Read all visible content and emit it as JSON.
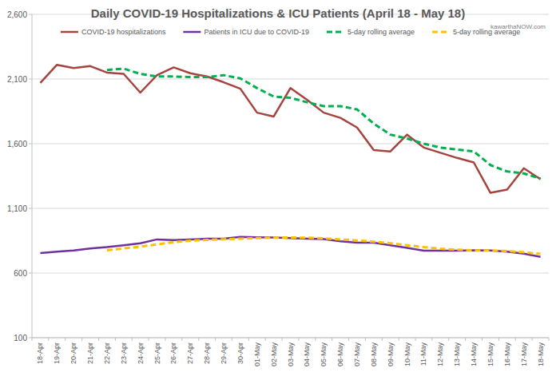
{
  "chart_data": {
    "type": "line",
    "title": "Daily COVID-19 Hospitalizations & ICU Patients (April 18 - May 18)",
    "annotation": "kawarthaNOW.com",
    "categories": [
      "18-Apr",
      "19-Apr",
      "20-Apr",
      "21-Apr",
      "22-Apr",
      "23-Apr",
      "24-Apr",
      "25-Apr",
      "26-Apr",
      "27-Apr",
      "28-Apr",
      "29-Apr",
      "30-Apr",
      "01-May",
      "02-May",
      "03-May",
      "04-May",
      "05-May",
      "06-May",
      "07-May",
      "08-May",
      "09-May",
      "10-May",
      "11-May",
      "12-May",
      "13-May",
      "14-May",
      "15-May",
      "16-May",
      "17-May",
      "18-May"
    ],
    "series": [
      {
        "name": "COVID-19 hospitalizations",
        "color": "#a5443f",
        "line_style": "solid",
        "values": [
          2070,
          2210,
          2185,
          2200,
          2150,
          2140,
          1995,
          2130,
          2190,
          2145,
          2120,
          2075,
          2025,
          1840,
          1810,
          2030,
          1940,
          1840,
          1800,
          1725,
          1550,
          1540,
          1670,
          1570,
          1530,
          1490,
          1455,
          1220,
          1245,
          1410,
          1325
        ]
      },
      {
        "name": "Patients in ICU due to COVID-19",
        "color": "#7030a0",
        "line_style": "solid",
        "values": [
          755,
          765,
          775,
          790,
          800,
          815,
          830,
          860,
          855,
          860,
          865,
          865,
          880,
          877,
          875,
          870,
          865,
          862,
          845,
          835,
          835,
          815,
          795,
          773,
          773,
          773,
          776,
          775,
          765,
          750,
          725
        ]
      },
      {
        "name": "5-day rolling average",
        "color": "#00b050",
        "line_style": "dashed",
        "values": [
          null,
          null,
          null,
          null,
          2170,
          2180,
          2140,
          2120,
          2120,
          2115,
          2115,
          2130,
          2105,
          2030,
          1965,
          1955,
          1920,
          1890,
          1890,
          1865,
          1755,
          1670,
          1640,
          1600,
          1570,
          1555,
          1540,
          1435,
          1385,
          1370,
          1330
        ]
      },
      {
        "name": "5-day rolling average",
        "color": "#ffc000",
        "line_style": "dashed",
        "values": [
          null,
          null,
          null,
          null,
          776,
          791,
          803,
          822,
          838,
          850,
          856,
          861,
          866,
          870,
          873,
          875,
          873,
          868,
          860,
          852,
          842,
          830,
          815,
          800,
          788,
          780,
          775,
          774,
          770,
          760,
          748
        ]
      }
    ],
    "ylim": [
      100,
      2600
    ],
    "yticks": [
      100,
      600,
      {
        "value": 1100,
        "label": "1,100"
      },
      {
        "value": 1600,
        "label": "1,600"
      },
      {
        "value": 2100,
        "label": "2,100"
      },
      {
        "value": 2600,
        "label": "2,600"
      }
    ],
    "grid": true,
    "legend": "top"
  }
}
